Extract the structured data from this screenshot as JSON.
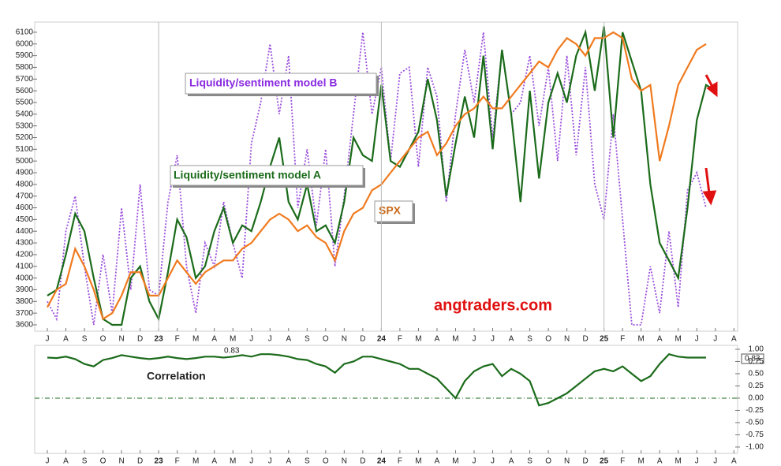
{
  "chart_data": [
    {
      "type": "line",
      "x": [
        0,
        0.5,
        1,
        1.5,
        2,
        2.5,
        3,
        3.5,
        4,
        4.5,
        5,
        5.5,
        6,
        6.5,
        7,
        7.5,
        8,
        8.5,
        9,
        9.5,
        10,
        10.5,
        11,
        11.5,
        12,
        12.5,
        13,
        13.5,
        14,
        14.5,
        15,
        15.5,
        16,
        16.5,
        17,
        17.5,
        18,
        18.5,
        19,
        19.5,
        20,
        20.5,
        21,
        21.5,
        22,
        22.5,
        23,
        23.5,
        24,
        24.5,
        25,
        25.5,
        26,
        26.5,
        27,
        27.5,
        28,
        28.5,
        29,
        29.5,
        30,
        30.5,
        31,
        31.5,
        32,
        32.5,
        33,
        33.5,
        34,
        34.5,
        35,
        35.5,
        36
      ],
      "xlim": [
        -0.68,
        37.2
      ],
      "xticks": [
        {
          "value": 0,
          "label": "J"
        },
        {
          "value": 1,
          "label": "A"
        },
        {
          "value": 2,
          "label": "S"
        },
        {
          "value": 3,
          "label": "O"
        },
        {
          "value": 4,
          "label": "N"
        },
        {
          "value": 5,
          "label": "D"
        },
        {
          "value": 6,
          "label": "23"
        },
        {
          "value": 7,
          "label": "F"
        },
        {
          "value": 8,
          "label": "M"
        },
        {
          "value": 9,
          "label": "A"
        },
        {
          "value": 10,
          "label": "M"
        },
        {
          "value": 11,
          "label": "J"
        },
        {
          "value": 12,
          "label": "J"
        },
        {
          "value": 13,
          "label": "A"
        },
        {
          "value": 14,
          "label": "S"
        },
        {
          "value": 15,
          "label": "O"
        },
        {
          "value": 16,
          "label": "N"
        },
        {
          "value": 17,
          "label": "D"
        },
        {
          "value": 18,
          "label": "24"
        },
        {
          "value": 19,
          "label": "F"
        },
        {
          "value": 20,
          "label": "M"
        },
        {
          "value": 21,
          "label": "A"
        },
        {
          "value": 22,
          "label": "M"
        },
        {
          "value": 23,
          "label": "J"
        },
        {
          "value": 24,
          "label": "J"
        },
        {
          "value": 25,
          "label": "A"
        },
        {
          "value": 26,
          "label": "S"
        },
        {
          "value": 27,
          "label": "O"
        },
        {
          "value": 28,
          "label": "N"
        },
        {
          "value": 29,
          "label": "D"
        },
        {
          "value": 30,
          "label": "25"
        },
        {
          "value": 31,
          "label": "F"
        },
        {
          "value": 32,
          "label": "M"
        },
        {
          "value": 33,
          "label": "A"
        },
        {
          "value": 34,
          "label": "M"
        },
        {
          "value": 35,
          "label": "J"
        },
        {
          "value": 36,
          "label": "J"
        },
        {
          "value": 37,
          "label": "A"
        }
      ],
      "ylim": [
        3546,
        6187
      ],
      "yticks": [
        3600,
        3700,
        3800,
        3900,
        4000,
        4100,
        4200,
        4300,
        4400,
        4500,
        4600,
        4700,
        4800,
        4900,
        5000,
        5100,
        5200,
        5300,
        5400,
        5500,
        5600,
        5700,
        5800,
        5900,
        6000,
        6100
      ],
      "series": [
        {
          "name": "Liquidity/sentiment model B",
          "color": "#9b4fdc",
          "dash": true,
          "values": [
            3800,
            3650,
            4400,
            4700,
            4100,
            3600,
            4200,
            3700,
            4600,
            3900,
            4800,
            3900,
            3850,
            4650,
            5050,
            4100,
            3700,
            4300,
            4100,
            4650,
            4300,
            4000,
            5150,
            5500,
            6000,
            5400,
            5900,
            4600,
            5100,
            4450,
            5100,
            4100,
            4700,
            5400,
            6100,
            5400,
            5800,
            5000,
            5750,
            5800,
            4950,
            5800,
            5550,
            4650,
            5400,
            5950,
            5500,
            6100,
            5200,
            5950,
            5400,
            5500,
            5900,
            5300,
            5800,
            5000,
            5900,
            5050,
            5800,
            4800,
            4500,
            5400,
            4500,
            3600,
            3600,
            4100,
            3700,
            4400,
            3750,
            4750,
            4900,
            4600,
            null
          ]
        },
        {
          "name": "Liquidity/sentiment model A",
          "color": "#1b6b1b",
          "dash": false,
          "values": [
            3850,
            3900,
            4200,
            4550,
            4400,
            4000,
            3650,
            3600,
            3600,
            4000,
            4100,
            3800,
            3650,
            4050,
            4500,
            4350,
            4000,
            4100,
            4400,
            4600,
            4300,
            4450,
            4400,
            4650,
            4950,
            5200,
            4650,
            4500,
            4800,
            4400,
            4450,
            4300,
            4650,
            5200,
            5050,
            5000,
            5650,
            5000,
            4950,
            5100,
            5250,
            5700,
            5350,
            4700,
            5150,
            5550,
            5200,
            5900,
            5100,
            5950,
            5400,
            4650,
            5600,
            4850,
            5500,
            5750,
            5500,
            5900,
            6100,
            5600,
            6150,
            5200,
            6100,
            5850,
            5600,
            4800,
            4300,
            4150,
            4000,
            4600,
            5350,
            5650,
            5600
          ]
        },
        {
          "name": "SPX",
          "color": "#f07a1e",
          "dash": false,
          "values": [
            3750,
            3900,
            3950,
            4250,
            4100,
            3900,
            3650,
            3700,
            3850,
            4050,
            4050,
            3850,
            3850,
            4000,
            4150,
            4050,
            3950,
            4050,
            4100,
            4150,
            4150,
            4250,
            4300,
            4400,
            4500,
            4550,
            4500,
            4400,
            4450,
            4350,
            4300,
            4150,
            4400,
            4550,
            4600,
            4750,
            4800,
            4900,
            5000,
            5100,
            5200,
            5250,
            5050,
            5150,
            5300,
            5400,
            5450,
            5550,
            5450,
            5450,
            5550,
            5650,
            5750,
            5850,
            5800,
            5950,
            6050,
            6000,
            5900,
            6050,
            6050,
            6100,
            6050,
            5700,
            5600,
            5650,
            5000,
            5300,
            5650,
            5800,
            5950,
            6000,
            null
          ]
        }
      ],
      "watermark": "angtraders.com"
    },
    {
      "type": "line",
      "x": [
        0,
        0.5,
        1,
        1.5,
        2,
        2.5,
        3,
        3.5,
        4,
        4.5,
        5,
        5.5,
        6,
        6.5,
        7,
        7.5,
        8,
        8.5,
        9,
        9.5,
        10,
        10.5,
        11,
        11.5,
        12,
        12.5,
        13,
        13.5,
        14,
        14.5,
        15,
        15.5,
        16,
        16.5,
        17,
        17.5,
        18,
        18.5,
        19,
        19.5,
        20,
        20.5,
        21,
        21.5,
        22,
        22.5,
        23,
        23.5,
        24,
        24.5,
        25,
        25.5,
        26,
        26.5,
        27,
        27.5,
        28,
        28.5,
        29,
        29.5,
        30,
        30.5,
        31,
        31.5,
        32,
        32.5,
        33,
        33.5,
        34,
        34.5,
        35,
        35.5,
        36
      ],
      "ylim": [
        -1.13,
        1.08
      ],
      "yticks": [
        {
          "value": 1,
          "label": "1.00"
        },
        {
          "value": 0.75,
          "label": "0.75"
        },
        {
          "value": 0.5,
          "label": "0.50"
        },
        {
          "value": 0.25,
          "label": "0.25"
        },
        {
          "value": 0,
          "label": "0.00"
        },
        {
          "value": -0.25,
          "label": "-0.25"
        },
        {
          "value": -0.5,
          "label": "-0.50"
        },
        {
          "value": -0.75,
          "label": "-0.75"
        },
        {
          "value": -1,
          "label": "-1.00"
        }
      ],
      "zero_line": 0,
      "series": [
        {
          "name": "Correlation",
          "color": "#1b6b1b",
          "values": [
            0.83,
            0.82,
            0.85,
            0.8,
            0.7,
            0.65,
            0.78,
            0.82,
            0.88,
            0.85,
            0.82,
            0.8,
            0.82,
            0.85,
            0.82,
            0.8,
            0.82,
            0.85,
            0.85,
            0.83,
            0.85,
            0.88,
            0.85,
            0.9,
            0.9,
            0.88,
            0.85,
            0.8,
            0.78,
            0.7,
            0.65,
            0.52,
            0.7,
            0.75,
            0.85,
            0.85,
            0.8,
            0.75,
            0.7,
            0.6,
            0.6,
            0.5,
            0.4,
            0.2,
            0.0,
            0.35,
            0.55,
            0.65,
            0.7,
            0.45,
            0.6,
            0.5,
            0.35,
            -0.15,
            -0.1,
            0.0,
            0.1,
            0.25,
            0.4,
            0.55,
            0.6,
            0.55,
            0.65,
            0.5,
            0.35,
            0.45,
            0.7,
            0.9,
            0.85,
            0.83,
            0.83,
            0.83,
            null
          ]
        }
      ],
      "value_readout": 0.83
    }
  ]
}
